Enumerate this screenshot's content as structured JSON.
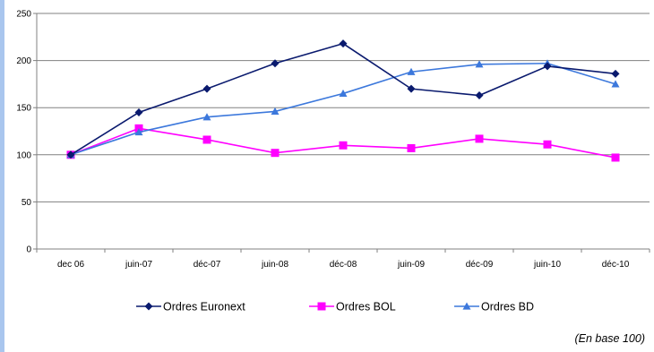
{
  "chart_data": {
    "type": "line",
    "categories": [
      "dec 06",
      "juin-07",
      "déc-07",
      "juin-08",
      "déc-08",
      "juin-09",
      "déc-09",
      "juin-10",
      "déc-10"
    ],
    "ylim": [
      0,
      250
    ],
    "yticks": [
      0,
      50,
      100,
      150,
      200,
      250
    ],
    "grid": true,
    "legend_position": "bottom",
    "series": [
      {
        "name": "Ordres Euronext",
        "color": "#0a1a6e",
        "marker": "diamond",
        "values": [
          100,
          145,
          170,
          197,
          218,
          170,
          163,
          194,
          186
        ]
      },
      {
        "name": "Ordres BOL",
        "color": "#ff00ff",
        "marker": "square",
        "values": [
          100,
          128,
          116,
          102,
          110,
          107,
          117,
          111,
          97
        ]
      },
      {
        "name": "Ordres BD",
        "color": "#3c78dc",
        "marker": "triangle",
        "values": [
          100,
          124,
          140,
          146,
          165,
          188,
          196,
          197,
          175
        ]
      }
    ],
    "note": "(En base 100)"
  }
}
